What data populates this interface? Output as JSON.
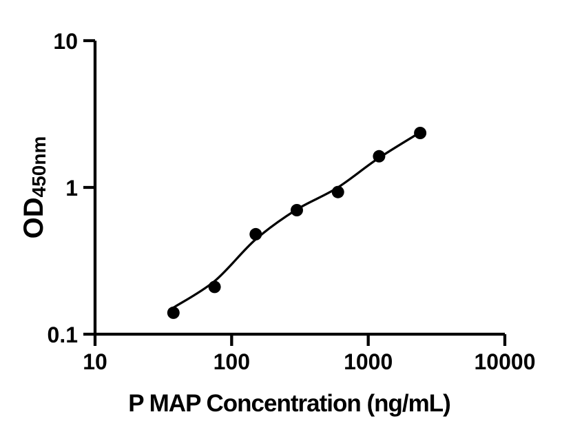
{
  "figure": {
    "background": "#ffffff",
    "foreground": "#000000"
  },
  "chart_data": {
    "type": "scatter",
    "title": "",
    "xlabel": "P MAP Concentration (ng/mL)",
    "ylabel_main": "OD",
    "ylabel_sub": "450nm",
    "x_scale": "log",
    "y_scale": "log",
    "xlim": [
      10,
      10000
    ],
    "ylim": [
      0.1,
      10
    ],
    "grid": false,
    "legend": "none",
    "x_ticks": [
      {
        "value": 10,
        "label": "10"
      },
      {
        "value": 100,
        "label": "100"
      },
      {
        "value": 1000,
        "label": "1000"
      },
      {
        "value": 10000,
        "label": "10000"
      }
    ],
    "y_ticks": [
      {
        "value": 10,
        "label": "10"
      },
      {
        "value": 1,
        "label": "1"
      },
      {
        "value": 0.1,
        "label": "0.1"
      }
    ],
    "series": [
      {
        "name": "standard-curve-points",
        "marker": "filled-circle",
        "points": [
          {
            "x": 37.5,
            "od": 0.14
          },
          {
            "x": 75,
            "od": 0.21
          },
          {
            "x": 150,
            "od": 0.48
          },
          {
            "x": 300,
            "od": 0.7
          },
          {
            "x": 600,
            "od": 0.93
          },
          {
            "x": 1200,
            "od": 1.63
          },
          {
            "x": 2400,
            "od": 2.35
          }
        ]
      }
    ],
    "fit_curve": [
      [
        37.6,
        0.152
      ],
      [
        75,
        0.23
      ],
      [
        149,
        0.44
      ],
      [
        294,
        0.7
      ],
      [
        590,
        0.99
      ],
      [
        1163,
        1.56
      ],
      [
        2394,
        2.37
      ]
    ],
    "marker_color": "#000000",
    "line_color": "#000000",
    "axis_color": "#000000"
  }
}
